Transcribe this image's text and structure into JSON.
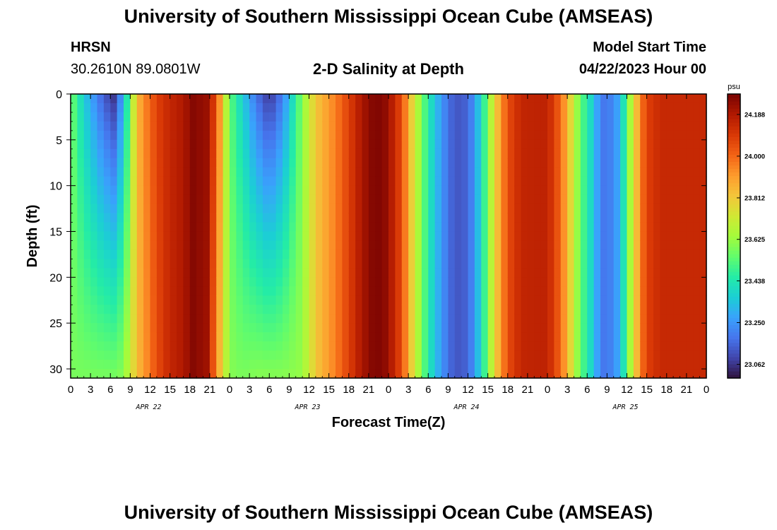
{
  "page": {
    "title": "University of Southern Mississippi Ocean Cube (AMSEAS)",
    "station": "HRSN",
    "coords": "30.2610N  89.0801W",
    "subtitle": "2-D Salinity at Depth",
    "model_start_label": "Model Start Time",
    "model_start_value": "04/22/2023 Hour 00",
    "footer_title": "University of Southern Mississippi Ocean Cube (AMSEAS)"
  },
  "chart_data": {
    "type": "heatmap",
    "title": "2-D Salinity at Depth",
    "xlabel": "Forecast Time(Z)",
    "ylabel": "Depth (ft)",
    "x_range_hours": [
      0,
      96
    ],
    "x_tick_labels": [
      "0",
      "3",
      "6",
      "9",
      "12",
      "15",
      "18",
      "21",
      "0",
      "3",
      "6",
      "9",
      "12",
      "15",
      "18",
      "21",
      "0",
      "3",
      "6",
      "9",
      "12",
      "15",
      "18",
      "21",
      "0",
      "3",
      "6",
      "9",
      "12",
      "15",
      "18",
      "21",
      "0"
    ],
    "date_labels": [
      "APR 22",
      "APR 23",
      "APR 24",
      "APR 25"
    ],
    "y_range": [
      0,
      31
    ],
    "y_ticks": [
      0,
      5,
      10,
      15,
      20,
      25,
      30
    ],
    "colorbar": {
      "unit": "psu",
      "min": 23.0,
      "max": 24.28,
      "tick_labels": [
        "24.188",
        "24.000",
        "23.812",
        "23.625",
        "23.438",
        "23.250",
        "23.062"
      ],
      "colors": [
        "#30123b",
        "#4145ab",
        "#4675ed",
        "#39a2fc",
        "#1bcfd4",
        "#24eca6",
        "#61fc6c",
        "#a4fc3b",
        "#d1e834",
        "#f3c63a",
        "#fe9b2d",
        "#f36315",
        "#d93806",
        "#b11901",
        "#7a0402"
      ]
    },
    "profile": {
      "hours": [
        0,
        2,
        5,
        6.5,
        8,
        10,
        11.5,
        13,
        15,
        17,
        18.5,
        20.5,
        22,
        23,
        24,
        26,
        28,
        30,
        32,
        35,
        37,
        40,
        42,
        44,
        45.5,
        47,
        48,
        50,
        52,
        54,
        56,
        58,
        60,
        61,
        62,
        63,
        64,
        65,
        66,
        68,
        70,
        72,
        73,
        74,
        75,
        76,
        76.5,
        77,
        79,
        80,
        81,
        83,
        84,
        85,
        86,
        87,
        89,
        92,
        96
      ],
      "surface": [
        23.58,
        23.36,
        23.13,
        23.06,
        23.3,
        23.85,
        23.97,
        24.08,
        24.15,
        24.19,
        24.26,
        24.23,
        24.06,
        23.8,
        23.55,
        23.36,
        23.18,
        23.06,
        23.2,
        23.6,
        23.82,
        23.96,
        24.08,
        24.2,
        24.26,
        24.27,
        24.22,
        24.05,
        23.72,
        23.45,
        23.25,
        23.12,
        23.15,
        23.26,
        23.4,
        23.58,
        23.78,
        23.92,
        24.05,
        24.15,
        24.16,
        24.16,
        24.08,
        24.0,
        23.86,
        23.7,
        23.62,
        23.55,
        23.35,
        23.2,
        23.18,
        23.3,
        23.55,
        23.75,
        23.95,
        24.08,
        24.14,
        24.14,
        24.14
      ],
      "bottom": [
        23.58,
        23.58,
        23.58,
        23.58,
        23.6,
        23.84,
        23.94,
        24.05,
        24.15,
        24.19,
        24.26,
        24.22,
        23.95,
        23.75,
        23.6,
        23.58,
        23.6,
        23.6,
        23.6,
        23.62,
        23.82,
        23.96,
        24.08,
        24.2,
        24.26,
        24.27,
        24.22,
        24.05,
        23.72,
        23.45,
        23.25,
        23.12,
        23.15,
        23.26,
        23.4,
        23.58,
        23.78,
        23.92,
        24.05,
        24.15,
        24.16,
        24.16,
        24.08,
        24.0,
        23.86,
        23.7,
        23.62,
        23.55,
        23.35,
        23.2,
        23.18,
        23.3,
        23.55,
        23.75,
        23.95,
        24.08,
        24.14,
        24.14,
        24.14
      ]
    }
  }
}
